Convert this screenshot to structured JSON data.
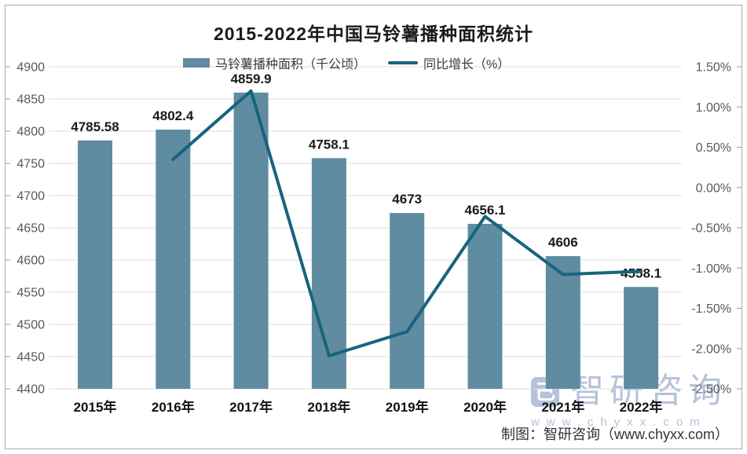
{
  "chart_data": {
    "type": "combo_bar_line",
    "title": "2015-2022年中国马铃薯播种面积统计",
    "categories": [
      "2015年",
      "2016年",
      "2017年",
      "2018年",
      "2019年",
      "2020年",
      "2021年",
      "2022年"
    ],
    "series": [
      {
        "name": "马铃薯播种面积（千公顷）",
        "type": "bar",
        "axis": "left",
        "values": [
          4785.58,
          4802.4,
          4859.9,
          4758.1,
          4673,
          4656.1,
          4606,
          4558.1
        ],
        "labels": [
          "4785.58",
          "4802.4",
          "4859.9",
          "4758.1",
          "4673",
          "4656.1",
          "4606",
          "4558.1"
        ]
      },
      {
        "name": "同比增长（%）",
        "type": "line",
        "axis": "right",
        "values": [
          null,
          0.35,
          1.2,
          -2.09,
          -1.79,
          -0.36,
          -1.08,
          -1.04
        ]
      }
    ],
    "left_axis": {
      "min": 4400,
      "max": 4900,
      "step": 50,
      "labels": [
        "4900",
        "4850",
        "4800",
        "4750",
        "4700",
        "4650",
        "4600",
        "4550",
        "4500",
        "4450",
        "4400"
      ]
    },
    "right_axis": {
      "min": -2.5,
      "max": 1.5,
      "step": 0.5,
      "labels": [
        "1.50%",
        "1.00%",
        "0.50%",
        "0.00%",
        "-0.50%",
        "-1.00%",
        "-1.50%",
        "-2.00%",
        "-2.50%"
      ]
    },
    "grid": true,
    "legend_position": "top"
  },
  "colors": {
    "bar": "#5F8CA0",
    "line": "#17647E",
    "grid": "#dcdcdc",
    "tick_text": "#595959",
    "axis_tick": "#9a9a9a",
    "label_text": "#1a1a1a",
    "watermark": "#b6c1dc",
    "border": "#ababab"
  },
  "watermark": {
    "logo_glyph": "己",
    "brand": "智研咨询",
    "url": "www.chyxx.com"
  },
  "footer": {
    "credit": "制图：智研咨询（www.chyxx.com）"
  }
}
